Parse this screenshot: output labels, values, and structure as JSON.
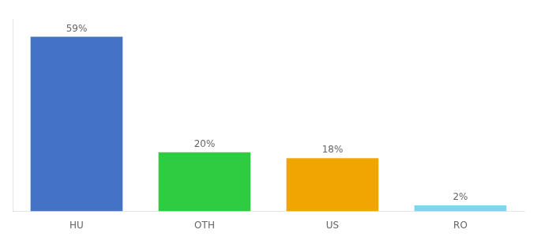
{
  "chart_data": {
    "type": "bar",
    "categories": [
      "HU",
      "OTH",
      "US",
      "RO"
    ],
    "values": [
      59,
      20,
      18,
      2
    ],
    "value_labels": [
      "59%",
      "20%",
      "18%",
      "2%"
    ],
    "colors": [
      "#4472c4",
      "#2ecc40",
      "#f0a500",
      "#7fd4f0"
    ],
    "ylim": [
      0,
      65
    ],
    "grid": false,
    "data_labels": true,
    "tick_labels": "x"
  }
}
